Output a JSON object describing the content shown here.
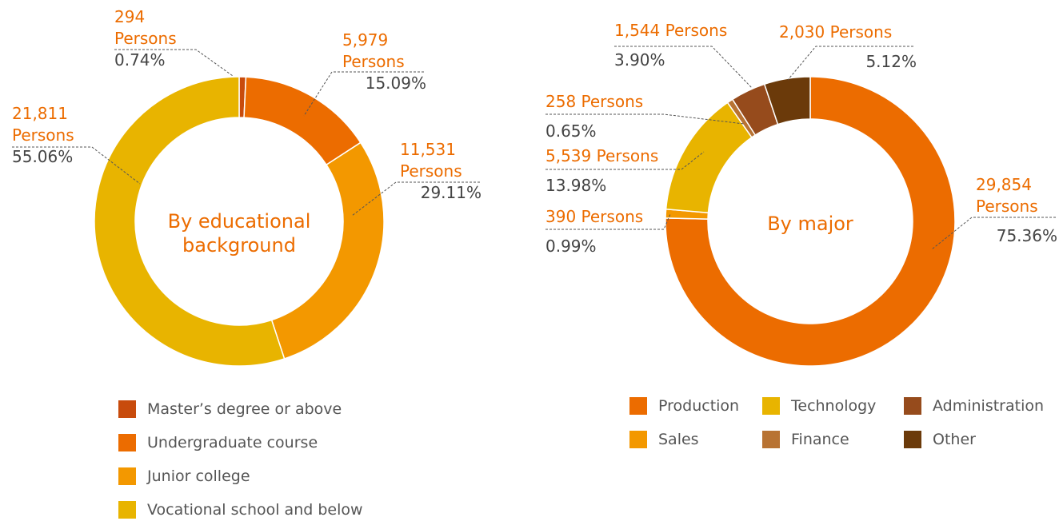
{
  "chart_data": [
    {
      "type": "donut",
      "center_label": "By educational background",
      "categories": [
        "Master’s degree or above",
        "Undergraduate course",
        "Junior college",
        "Vocational school and below"
      ],
      "values": [
        294,
        5979,
        11531,
        21811
      ],
      "value_labels": [
        "294 Persons",
        "5,979 Persons",
        "11,531 Persons",
        "21,811 Persons"
      ],
      "percents": [
        0.74,
        15.09,
        29.11,
        55.06
      ],
      "percent_labels": [
        "0.74%",
        "15.09%",
        "29.11%",
        "55.06%"
      ],
      "colors": [
        "#c84b0c",
        "#ec6c00",
        "#f39800",
        "#e8b400"
      ]
    },
    {
      "type": "donut",
      "center_label": "By major",
      "categories": [
        "Production",
        "Sales",
        "Technology",
        "Finance",
        "Administration",
        "Other"
      ],
      "values": [
        29854,
        390,
        5539,
        258,
        1544,
        2030
      ],
      "value_labels": [
        "29,854 Persons",
        "390 Persons",
        "5,539 Persons",
        "258 Persons",
        "1,544 Persons",
        "2,030 Persons"
      ],
      "percents": [
        75.36,
        0.99,
        13.98,
        0.65,
        3.9,
        5.12
      ],
      "percent_labels": [
        "75.36%",
        "0.99%",
        "13.98%",
        "0.65%",
        "3.90%",
        "5.12%"
      ],
      "colors": [
        "#ec6c00",
        "#f39800",
        "#e8b400",
        "#b87333",
        "#964b1c",
        "#6b3a0a"
      ]
    }
  ]
}
